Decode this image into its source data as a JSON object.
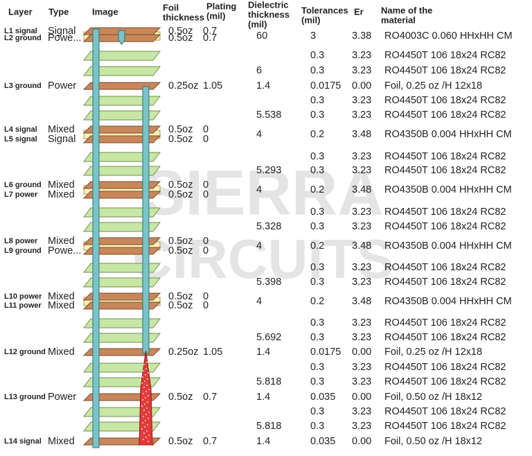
{
  "watermark": [
    "SIERRA",
    "CIRCUITS"
  ],
  "headers": {
    "layer": [
      "Layer"
    ],
    "type": [
      "Type"
    ],
    "image": [
      "Image"
    ],
    "foil": [
      "Foil",
      "thickness"
    ],
    "plating": [
      "Plating",
      "(mil)"
    ],
    "dielectric": [
      "Dielectric",
      "thickness",
      "(mil)"
    ],
    "tolerance": [
      "Tolerances",
      "(mil)"
    ],
    "er": [
      "Er"
    ],
    "material": [
      "Name of the",
      "material"
    ]
  },
  "layers": [
    {
      "name": "L1 signal",
      "type": "Signal",
      "foil": "0.5oz",
      "plating": "0.7"
    },
    {
      "name": "L2 ground",
      "type": "Powe...",
      "foil": "0.5oz",
      "plating": "0.7"
    },
    {
      "name": "L3 ground",
      "type": "Power",
      "foil": "0.25oz",
      "plating": "1.05"
    },
    {
      "name": "L4 signal",
      "type": "Mixed",
      "foil": "0.5oz",
      "plating": "0"
    },
    {
      "name": "L5 signal",
      "type": "Signal",
      "foil": "0.5oz",
      "plating": "0"
    },
    {
      "name": "L6 ground",
      "type": "Mixed",
      "foil": "0.5oz",
      "plating": "0"
    },
    {
      "name": "L7 power",
      "type": "Mixed",
      "foil": "0.5oz",
      "plating": "0"
    },
    {
      "name": "L8 power",
      "type": "Mixed",
      "foil": "0.5oz",
      "plating": "0"
    },
    {
      "name": "L9 ground",
      "type": "Powe...",
      "foil": "0.5oz",
      "plating": "0"
    },
    {
      "name": "L10 power",
      "type": "Mixed",
      "foil": "0.5oz",
      "plating": "0"
    },
    {
      "name": "L11 power",
      "type": "Mixed",
      "foil": "0.5oz",
      "plating": "0"
    },
    {
      "name": "L12 ground",
      "type": "Mixed",
      "foil": "0.25oz",
      "plating": "1.05"
    },
    {
      "name": "L13 ground",
      "type": "Power",
      "foil": "0.5oz",
      "plating": "0.7"
    },
    {
      "name": "L14 signal",
      "type": "Mixed",
      "foil": "0.5oz",
      "plating": "0.7"
    }
  ],
  "materials": [
    {
      "dielectric": "60",
      "tolerance": "3",
      "er": "3.38",
      "material": "RO4003C 0.060 HHxHH CM"
    },
    {
      "tolerance": "0.3",
      "er": "3.23",
      "material": "RO4450T 106 18x24 RC82"
    },
    {
      "dielectric": "6",
      "tolerance": "0.3",
      "er": "3.23",
      "material": "RO4450T 106 18x24 RC82"
    },
    {
      "dielectric": "1.4",
      "tolerance": "0.0175",
      "er": "0.00",
      "material": "Foil, 0.25 oz /H 12x18"
    },
    {
      "tolerance": "0.3",
      "er": "3.23",
      "material": "RO4450T 106 18x24 RC82"
    },
    {
      "dielectric": "5.538",
      "tolerance": "0.3",
      "er": "3.23",
      "material": "RO4450T 106 18x24 RC82"
    },
    {
      "dielectric": "4",
      "tolerance": "0.2",
      "er": "3.48",
      "material": "RO4350B 0.004 HHxHH CM"
    },
    {
      "tolerance": "0.3",
      "er": "3.23",
      "material": "RO4450T 106 18x24 RC82"
    },
    {
      "dielectric": "5.293",
      "tolerance": "0.3",
      "er": "3.23",
      "material": "RO4450T 106 18x24 RC82"
    },
    {
      "dielectric": "4",
      "tolerance": "0.2",
      "er": "3.48",
      "material": "RO4350B 0.004 HHxHH CM"
    },
    {
      "tolerance": "0.3",
      "er": "3.23",
      "material": "RO4450T 106 18x24 RC82"
    },
    {
      "dielectric": "5.328",
      "tolerance": "0.3",
      "er": "3.23",
      "material": "RO4450T 106 18x24 RC82"
    },
    {
      "dielectric": "4",
      "tolerance": "0.2",
      "er": "3.48",
      "material": "RO4350B 0.004 HHxHH CM"
    },
    {
      "tolerance": "0.3",
      "er": "3.23",
      "material": "RO4450T 106 18x24 RC82"
    },
    {
      "dielectric": "5.398",
      "tolerance": "0.3",
      "er": "3.23",
      "material": "RO4450T 106 18x24 RC82"
    },
    {
      "dielectric": "4",
      "tolerance": "0.2",
      "er": "3.48",
      "material": "RO4350B 0.004 HHxHH CM"
    },
    {
      "tolerance": "0.3",
      "er": "3.23",
      "material": "RO4450T 106 18x24 RC82"
    },
    {
      "dielectric": "5.692",
      "tolerance": "0.3",
      "er": "3.23",
      "material": "RO4450T 106 18x24 RC82"
    },
    {
      "dielectric": "1.4",
      "tolerance": "0.0175",
      "er": "0.00",
      "material": "Foil, 0.25 oz /H 12x18"
    },
    {
      "tolerance": "0.3",
      "er": "3.23",
      "material": "RO4450T 106 18x24 RC82"
    },
    {
      "dielectric": "5.818",
      "tolerance": "0.3",
      "er": "3.23",
      "material": "RO4450T 106 18x24 RC82"
    },
    {
      "dielectric": "1.4",
      "tolerance": "0.035",
      "er": "0.00",
      "material": "Foil, 0.50 oz /H 18x12"
    },
    {
      "tolerance": "0.3",
      "er": "3.23",
      "material": "RO4450T 106 18x24 RC82"
    },
    {
      "dielectric": "5.818",
      "tolerance": "0.3",
      "er": "3.23",
      "material": "RO4450T 106 18x24 RC82"
    },
    {
      "dielectric": "1.4",
      "tolerance": "0.035",
      "er": "0.00",
      "material": "Foil, 0.50 oz /H 18x12"
    }
  ]
}
